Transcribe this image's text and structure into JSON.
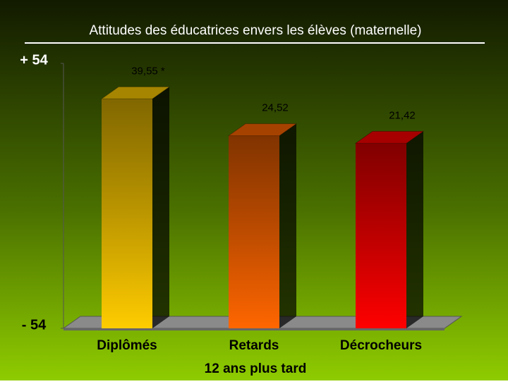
{
  "chart_data": {
    "type": "bar3d",
    "title": "Attitudes des éducatrices envers les élèves (maternelle)",
    "categories": [
      "Diplômés",
      "Retards",
      "Décrocheurs"
    ],
    "values": [
      39.55,
      24.52,
      21.42
    ],
    "value_labels": [
      "39,55 *",
      "24,52",
      "21,42"
    ],
    "colors": [
      "#ffcc00",
      "#ff6600",
      "#ff0000"
    ],
    "x_label": "12 ans plus tard",
    "ylim": [
      -54,
      54
    ],
    "yticks": [
      {
        "value": 54,
        "label": "+ 54"
      },
      {
        "value": -54,
        "label": "- 54"
      }
    ]
  }
}
